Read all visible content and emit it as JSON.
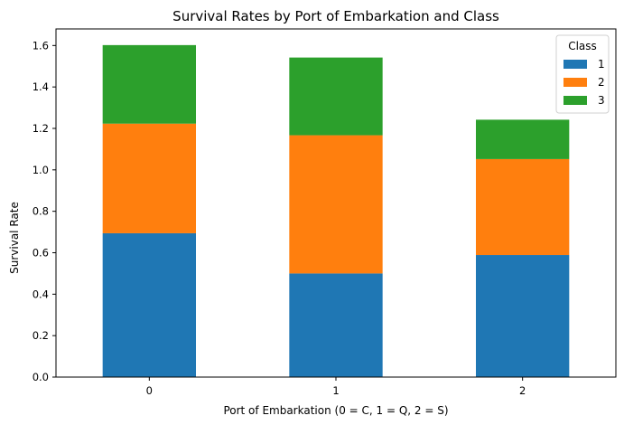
{
  "chart_data": {
    "type": "bar",
    "stacked": true,
    "title": "Survival Rates by Port of Embarkation and Class",
    "xlabel": "Port of Embarkation (0 = C, 1 = Q, 2 = S)",
    "ylabel": "Survival Rate",
    "categories": [
      "0",
      "1",
      "2"
    ],
    "ylim": [
      0,
      1.68
    ],
    "yticks": [
      "0.0",
      "0.2",
      "0.4",
      "0.6",
      "0.8",
      "1.0",
      "1.2",
      "1.4",
      "1.6"
    ],
    "grid": false,
    "legend": {
      "title": "Class",
      "placement": "top-right"
    },
    "series": [
      {
        "name": "1",
        "color": "#1f77b4",
        "values": [
          0.694,
          0.5,
          0.589
        ]
      },
      {
        "name": "2",
        "color": "#ff7f0e",
        "values": [
          0.529,
          0.667,
          0.463
        ]
      },
      {
        "name": "3",
        "color": "#2ca02c",
        "values": [
          0.379,
          0.375,
          0.19
        ]
      }
    ]
  }
}
